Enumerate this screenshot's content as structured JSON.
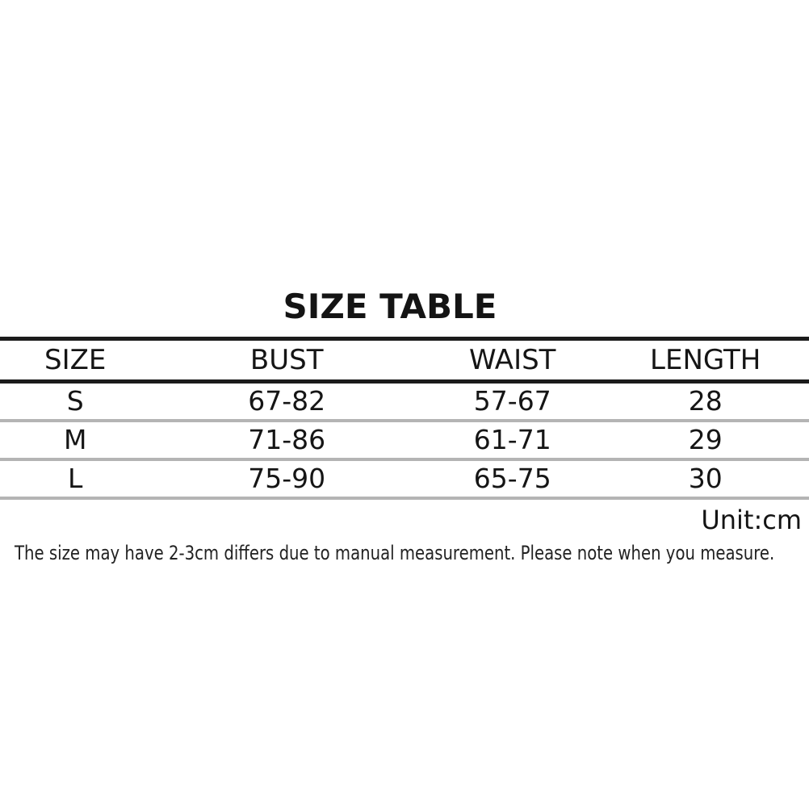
{
  "page": {
    "title": "SIZE TABLE",
    "unit_label": "Unit:cm",
    "note": "The size may have 2-3cm differs due to manual measurement. Please note when you measure."
  },
  "table": {
    "headers": [
      "SIZE",
      "BUST",
      "WAIST",
      "LENGTH"
    ],
    "rows": [
      {
        "size": "S",
        "bust": "67-82",
        "waist": "57-67",
        "length": "28"
      },
      {
        "size": "M",
        "bust": "71-86",
        "waist": "61-71",
        "length": "29"
      },
      {
        "size": "L",
        "bust": "75-90",
        "waist": "65-75",
        "length": "30"
      }
    ]
  },
  "colors": {
    "background": "#ffffff",
    "text": "#151515",
    "note_text": "#222222",
    "heavy_rule": "#1b1b1b",
    "light_rule": "#b4b4b4"
  }
}
